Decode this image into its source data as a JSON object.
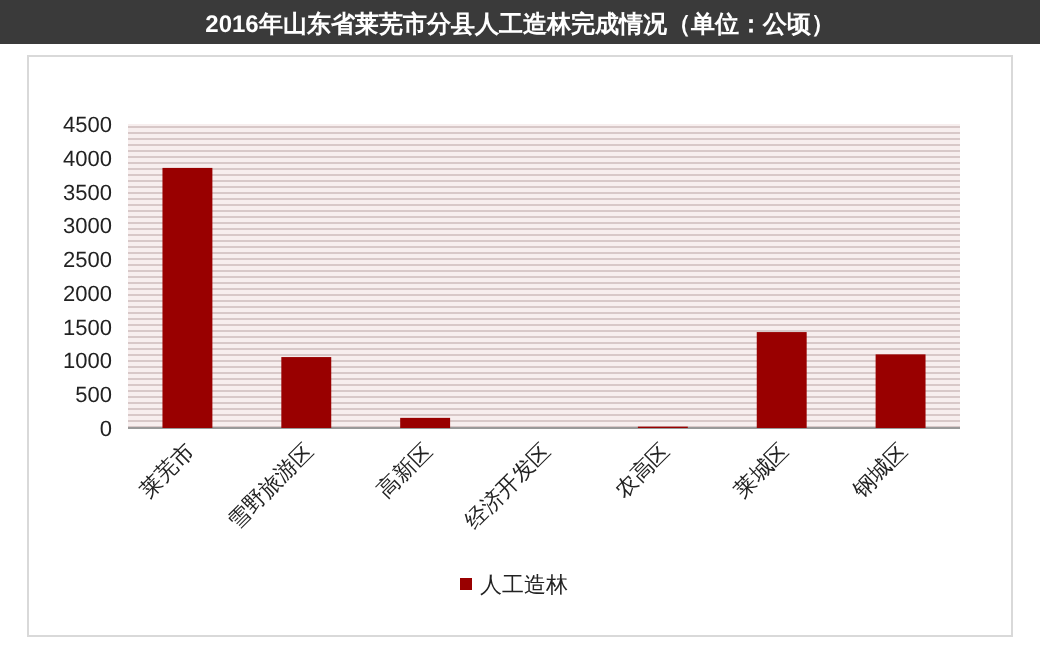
{
  "chart_data": {
    "type": "bar",
    "title": "2016年山东省莱芜市分县人工造林完成情况（单位：公顷）",
    "categories": [
      "莱芜市",
      "雪野旅游区",
      "高新区",
      "经济开发区",
      "农高区",
      "莱城区",
      "钢城区"
    ],
    "series": [
      {
        "name": "人工造林",
        "color": "#990000",
        "values": [
          3850,
          1050,
          150,
          0,
          20,
          1420,
          1090
        ]
      }
    ],
    "ylim": [
      0,
      4500
    ],
    "yticks": [
      0,
      500,
      1000,
      1500,
      2000,
      2500,
      3000,
      3500,
      4000,
      4500
    ],
    "grid": false,
    "legend": "bottom"
  }
}
